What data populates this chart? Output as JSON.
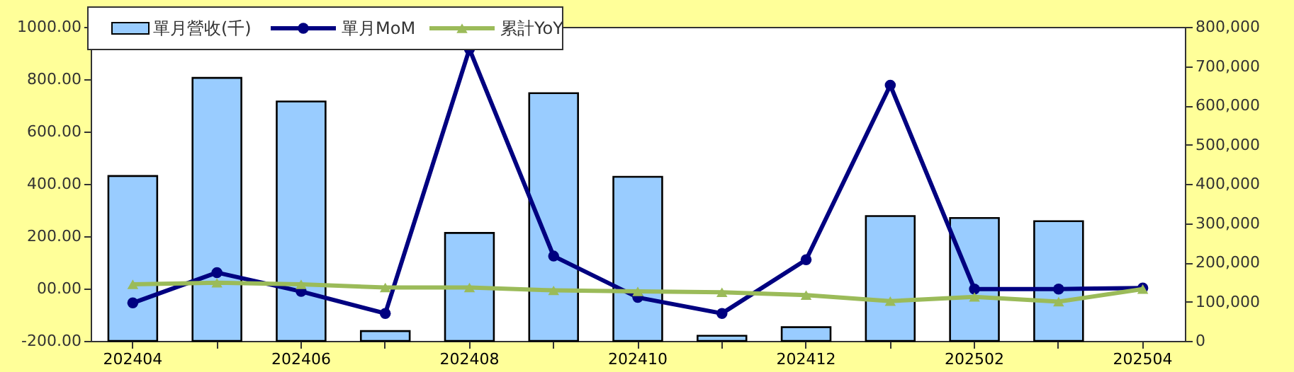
{
  "chart_data": {
    "type": "bar",
    "categories": [
      "202404",
      null,
      "202406",
      null,
      "202408",
      null,
      "202410",
      null,
      "202412",
      null,
      "202502",
      null,
      "202504"
    ],
    "series": [
      {
        "name": "單月營收(千)",
        "axis": "y2",
        "color": "#99ccff",
        "values": [
          420000,
          670000,
          610000,
          25000,
          275000,
          631000,
          418000,
          13000,
          35000,
          318000,
          313000,
          305000,
          null
        ]
      },
      {
        "name": "單月MoM",
        "type": "line",
        "marker": "circle",
        "color": "#000080",
        "values": [
          -55,
          61,
          -11,
          -95,
          915,
          124,
          -34,
          -95,
          110,
          777,
          -2,
          -2,
          2
        ]
      },
      {
        "name": "累計YoY",
        "type": "line",
        "marker": "triangle",
        "color": "#9bbb59",
        "values": [
          16,
          22,
          16,
          4,
          4,
          -7,
          -11,
          -14,
          -25,
          -48,
          -32,
          -50,
          -2
        ]
      }
    ],
    "ylim": [
      -200,
      1000
    ],
    "yticks": [
      {
        "value": -200,
        "label": "-200.00"
      },
      {
        "value": 0,
        "label": "00.00"
      },
      {
        "value": 200,
        "label": "200.00"
      },
      {
        "value": 400,
        "label": "400.00"
      },
      {
        "value": 600,
        "label": "600.00"
      },
      {
        "value": 800,
        "label": "800.00"
      },
      {
        "value": 1000,
        "label": "1000.00"
      }
    ],
    "y2lim": [
      0,
      800000
    ],
    "y2ticks": [
      0,
      {
        "value": 100000,
        "label": "100,000"
      },
      {
        "value": 200000,
        "label": "200,000"
      },
      {
        "value": 300000,
        "label": "300,000"
      },
      {
        "value": 400000,
        "label": "400,000"
      },
      {
        "value": 500000,
        "label": "500,000"
      },
      {
        "value": 600000,
        "label": "600,000"
      },
      {
        "value": 700000,
        "label": "700,000"
      },
      {
        "value": 800000,
        "label": "800,000"
      }
    ],
    "grid": false,
    "legend": "top left"
  }
}
